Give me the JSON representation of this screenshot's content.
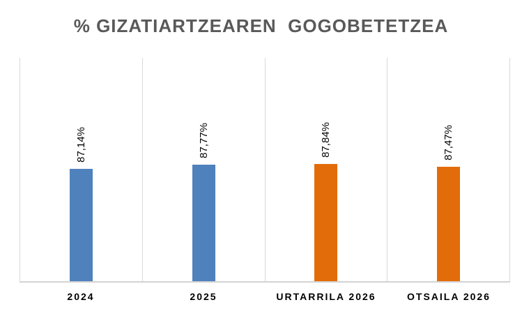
{
  "title": "% GIZATIARTZEAREN  GOGOBETETZEA",
  "chart_data": {
    "type": "bar",
    "title": "% GIZATIARTZEAREN  GOGOBETETZEA",
    "categories": [
      "2024",
      "2025",
      "URTARRILA 2026",
      "OTSAILA 2026"
    ],
    "values": [
      87.14,
      87.77,
      87.84,
      87.47
    ],
    "data_labels": [
      "87,14%",
      "87,77%",
      "87,84%",
      "87,47%"
    ],
    "series_colors": [
      "#4F81BD",
      "#4F81BD",
      "#E36C0A",
      "#E36C0A"
    ],
    "xlabel": "",
    "ylabel": "",
    "ylim": [
      70,
      104
    ],
    "value_axis_visible": false,
    "grid": "vertical-category-separators-only",
    "legend": "none",
    "data_label_rotation": -90
  },
  "colors": {
    "title_text": "#595959",
    "gridlines": "#D9D9D9",
    "axis_line": "#D3D3D3",
    "data_label_text": "#000000",
    "category_label_text": "#000000"
  }
}
